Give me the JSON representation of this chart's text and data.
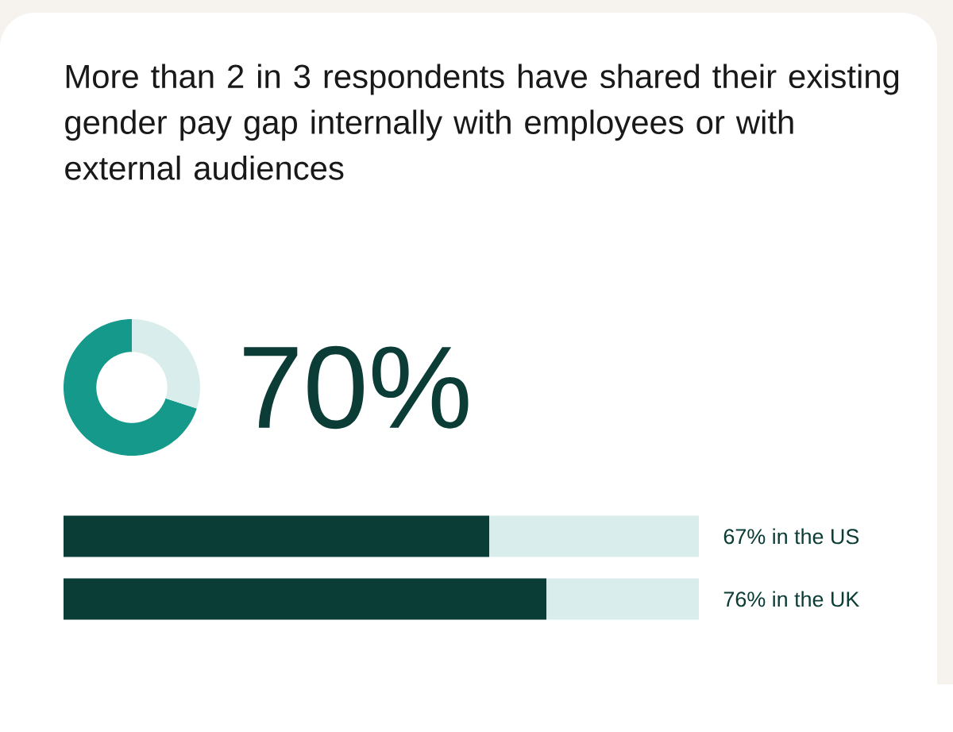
{
  "chart_data": [
    {
      "type": "donut",
      "title": "More than 2 in 3 respondents have shared their existing gender pay gap internally with employees or with external audiences",
      "categories": [
        null,
        null
      ],
      "values": [
        70,
        30
      ],
      "colors": [
        "#14998a",
        "#d9eeec"
      ],
      "value_labels": [
        "70%",
        null
      ]
    },
    {
      "type": "bar",
      "orientation": "horizontal",
      "stacked": true,
      "categories": [
        null,
        null
      ],
      "xlim": [
        0,
        100
      ],
      "tick_labels": false,
      "series": [
        {
          "color": "#0a3d36",
          "values": [
            67,
            76
          ],
          "value_labels": [
            "67% in the US",
            "76% in the UK"
          ]
        },
        {
          "color": "#d9eeec",
          "values": [
            33,
            24
          ]
        }
      ]
    }
  ]
}
